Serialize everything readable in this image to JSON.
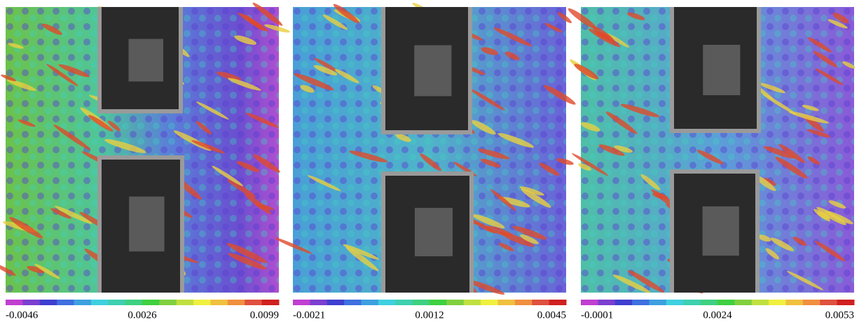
{
  "panels": [
    {
      "min_label": "-0.0046",
      "mid_label": "0.0026",
      "max_label": "0.0099"
    },
    {
      "min_label": "-0.0021",
      "mid_label": "0.0012",
      "max_label": "0.0045"
    },
    {
      "min_label": "-0.0001",
      "mid_label": "0.0024",
      "max_label": "0.0053"
    }
  ]
}
